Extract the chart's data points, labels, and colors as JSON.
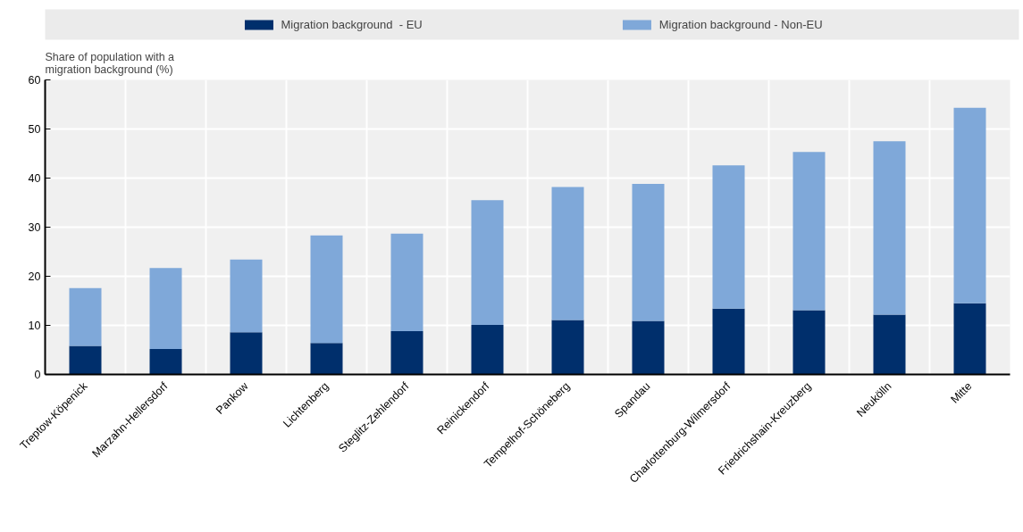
{
  "chart_data": {
    "type": "bar",
    "stacked": true,
    "ylabel": "Share of population with a migration background (%)",
    "categories": [
      "Treptow-Köpenick",
      "Marzahn-Hellersdorf",
      "Pankow",
      "Lichtenberg",
      "Steglitz-Zehlendorf",
      "Reinickendorf",
      "Tempelhof-Schöneberg",
      "Spandau",
      "Charlottenburg-Wilmersdorf",
      "Friedrichshain-Kreuzberg",
      "Neukölln",
      "Mitte"
    ],
    "series": [
      {
        "name": "Migration background  - EU",
        "color": "#002f6c",
        "values": [
          5.8,
          5.2,
          8.6,
          6.4,
          8.8,
          10.1,
          11.1,
          10.9,
          13.4,
          13.1,
          12.2,
          14.5
        ]
      },
      {
        "name": "Migration background - Non-EU",
        "color": "#7fa8d9",
        "values": [
          11.8,
          16.5,
          14.8,
          21.9,
          19.9,
          25.4,
          27.1,
          27.9,
          29.2,
          32.2,
          35.3,
          39.8
        ]
      }
    ],
    "ylim": [
      0,
      60
    ],
    "yticks": [
      0,
      10,
      20,
      30,
      40,
      50,
      60
    ],
    "grid": true,
    "legend": "top"
  }
}
